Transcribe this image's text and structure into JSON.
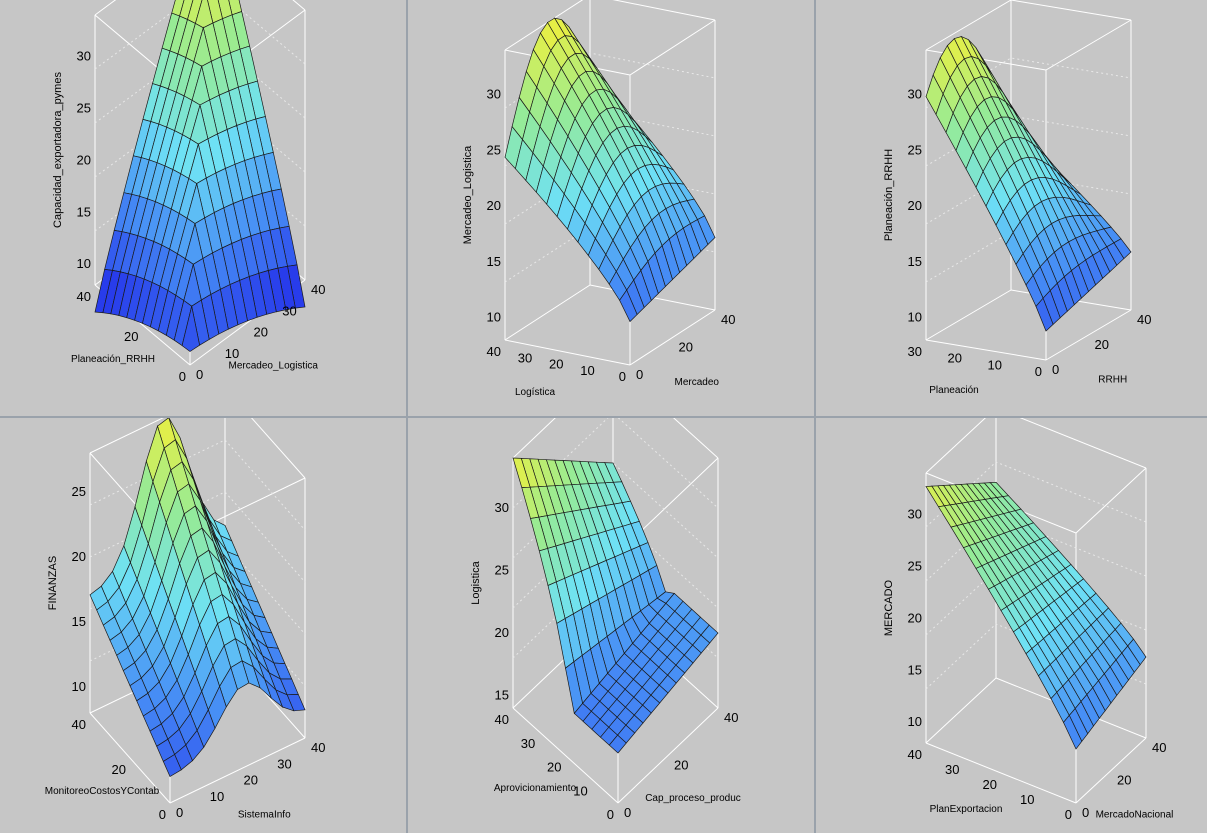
{
  "chart_data": [
    {
      "type": "surface3d",
      "xlabel": "Planeación_RRHH",
      "ylabel": "Mercadeo_Logistica",
      "zlabel": "Capacidad_exportadora_pymes",
      "x_ticks": [
        "40",
        "20",
        "0"
      ],
      "y_ticks": [
        "0",
        "10",
        "20",
        "30",
        "40"
      ],
      "z_ticks": [
        "30",
        "25",
        "20",
        "15",
        "10"
      ],
      "xlim": [
        0,
        40
      ],
      "ylim": [
        0,
        40
      ],
      "zlim": [
        8,
        34
      ]
    },
    {
      "type": "surface3d",
      "xlabel": "Logística",
      "ylabel": "Mercadeo",
      "zlabel": "Mercadeo_Logistica",
      "x_ticks": [
        "40",
        "30",
        "20",
        "10",
        "0"
      ],
      "y_ticks": [
        "0",
        "20",
        "40"
      ],
      "z_ticks": [
        "30",
        "25",
        "20",
        "15",
        "10"
      ],
      "xlim": [
        0,
        40
      ],
      "ylim": [
        0,
        40
      ],
      "zlim": [
        8,
        34
      ]
    },
    {
      "type": "surface3d",
      "xlabel": "Planeación",
      "ylabel": "RRHH",
      "zlabel": "Planeación_RRHH",
      "x_ticks": [
        "30",
        "20",
        "10",
        "0"
      ],
      "y_ticks": [
        "0",
        "20",
        "40"
      ],
      "z_ticks": [
        "30",
        "25",
        "20",
        "15",
        "10"
      ],
      "xlim": [
        0,
        40
      ],
      "ylim": [
        0,
        40
      ],
      "zlim": [
        8,
        34
      ]
    },
    {
      "type": "surface3d",
      "xlabel": "MonitoreoCostosYContab",
      "ylabel": "SistemaInfo",
      "zlabel": "FINANZAS",
      "x_ticks": [
        "40",
        "20",
        "0"
      ],
      "y_ticks": [
        "0",
        "10",
        "20",
        "30",
        "40"
      ],
      "z_ticks": [
        "25",
        "20",
        "15",
        "10"
      ],
      "xlim": [
        0,
        40
      ],
      "ylim": [
        0,
        40
      ],
      "zlim": [
        8,
        28
      ]
    },
    {
      "type": "surface3d",
      "xlabel": "Aprovicionamiento",
      "ylabel": "Cap_proceso_produc",
      "zlabel": "Logistica",
      "x_ticks": [
        "40",
        "30",
        "20",
        "10",
        "0"
      ],
      "y_ticks": [
        "0",
        "20",
        "40"
      ],
      "z_ticks": [
        "30",
        "25",
        "20",
        "15"
      ],
      "xlim": [
        0,
        40
      ],
      "ylim": [
        0,
        40
      ],
      "zlim": [
        14,
        34
      ]
    },
    {
      "type": "surface3d",
      "xlabel": "PlanExportacion",
      "ylabel": "MercadoNacional",
      "zlabel": "MERCADO",
      "x_ticks": [
        "40",
        "30",
        "20",
        "10",
        "0"
      ],
      "y_ticks": [
        "0",
        "20",
        "40"
      ],
      "z_ticks": [
        "30",
        "25",
        "20",
        "15",
        "10"
      ],
      "xlim": [
        0,
        40
      ],
      "ylim": [
        0,
        40
      ],
      "zlim": [
        8,
        34
      ]
    }
  ]
}
